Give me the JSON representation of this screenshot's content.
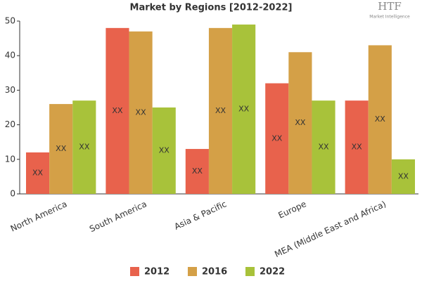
{
  "chart_data": {
    "type": "bar",
    "title": "Market by Regions [2012-2022]",
    "logo": {
      "name": "HTF",
      "tagline": "Market Intelligence"
    },
    "categories": [
      "North America",
      "South America",
      "Asia & Pacific",
      "Europe",
      "MEA (Middle East and Africa)"
    ],
    "series": [
      {
        "name": "2012",
        "color": "#e8624c",
        "values": [
          12,
          48,
          13,
          32,
          27
        ],
        "value_labels": [
          "XX",
          "XX",
          "XX",
          "XX",
          "XX"
        ]
      },
      {
        "name": "2016",
        "color": "#d4a047",
        "values": [
          26,
          47,
          48,
          41,
          43
        ],
        "value_labels": [
          "XX",
          "XX",
          "XX",
          "XX",
          "XX"
        ]
      },
      {
        "name": "2022",
        "color": "#a8c23a",
        "values": [
          27,
          25,
          49,
          27,
          10
        ],
        "value_labels": [
          "XX",
          "XX",
          "XX",
          "XX",
          "XX"
        ]
      }
    ],
    "ylim": [
      0,
      50
    ],
    "yticks": [
      0,
      10,
      20,
      30,
      40,
      50
    ],
    "grid": false,
    "legend": "bottom"
  }
}
